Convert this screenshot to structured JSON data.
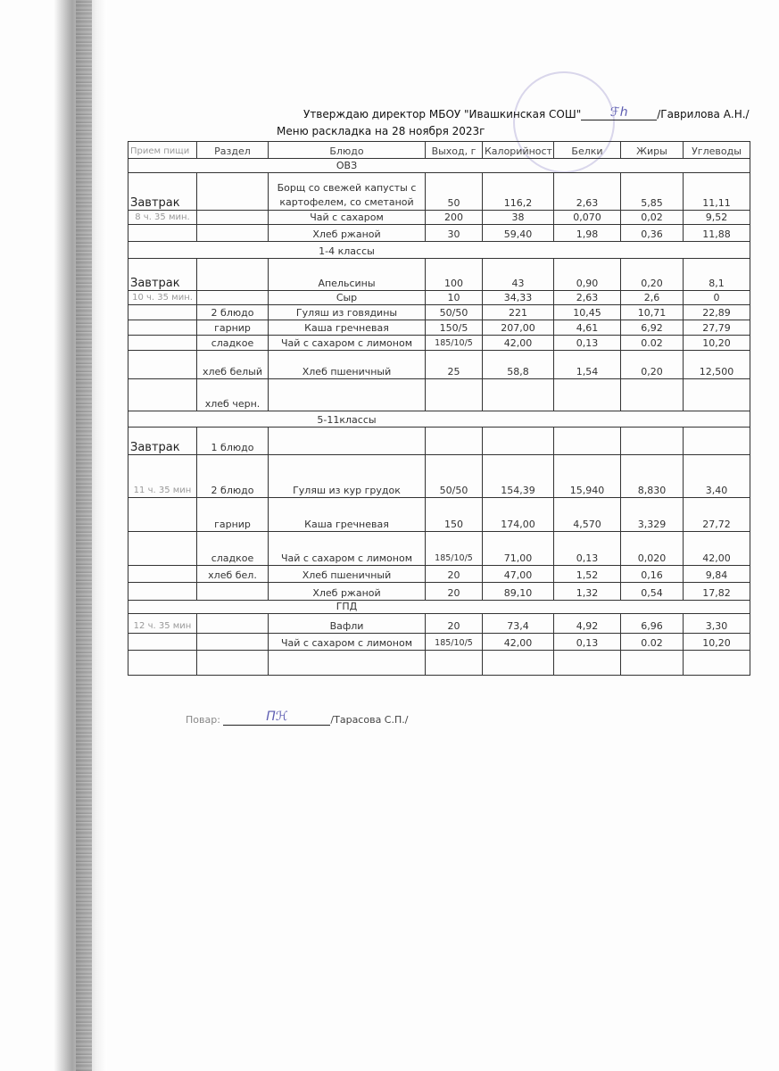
{
  "approval": {
    "text": "Утверждаю директор МБОУ \"Ивашкинская СОШ\"",
    "name": "/Гаврилова А.Н./"
  },
  "title": "Меню раскладка на 28 ноября 2023г",
  "columns": [
    "Прием пищи",
    "Раздел",
    "Блюдо",
    "Выход, г",
    "Калорийность",
    "Белки",
    "Жиры",
    "Углеводы"
  ],
  "rows": [
    {
      "heading": "ОВЗ"
    },
    {
      "cells": [
        "Завтрак",
        "",
        "Борщ со свежей капусты с картофелем, со сметаной",
        "50",
        "116,2",
        "2,63",
        "5,85",
        "11,11"
      ]
    },
    {
      "cells": [
        "8 ч. 35 мин.",
        "",
        "Чай с сахаром",
        "200",
        "38",
        "0,070",
        "0,02",
        "9,52"
      ]
    },
    {
      "cells": [
        "",
        "",
        "Хлеб ржаной",
        "30",
        "59,40",
        "1,98",
        "0,36",
        "11,88"
      ]
    },
    {
      "heading": "1-4 классы"
    },
    {
      "cells": [
        "Завтрак",
        "",
        "Апельсины",
        "100",
        "43",
        "0,90",
        "0,20",
        "8,1"
      ]
    },
    {
      "cells": [
        "10 ч. 35 мин.",
        "",
        "Сыр",
        "10",
        "34,33",
        "2,63",
        "2,6",
        "0"
      ]
    },
    {
      "cells": [
        "",
        "2 блюдо",
        "Гуляш из говядины",
        "50/50",
        "221",
        "10,45",
        "10,71",
        "22,89"
      ]
    },
    {
      "cells": [
        "",
        "гарнир",
        "Каша гречневая",
        "150/5",
        "207,00",
        "4,61",
        "6,92",
        "27,79"
      ]
    },
    {
      "cells": [
        "",
        "сладкое",
        "Чай с сахаром с лимоном",
        "185/10/5",
        "42,00",
        "0,13",
        "0.02",
        "10,20"
      ]
    },
    {
      "cells": [
        "",
        "хлеб белый",
        "Хлеб пшеничный",
        "25",
        "58,8",
        "1,54",
        "0,20",
        "12,500"
      ]
    },
    {
      "cells": [
        "",
        "хлеб черн.",
        "",
        "",
        "",
        "",
        "",
        ""
      ]
    },
    {
      "heading": "5-11классы"
    },
    {
      "cells": [
        "Завтрак",
        "1 блюдо",
        "",
        "",
        "",
        "",
        "",
        ""
      ]
    },
    {
      "cells": [
        "11 ч. 35 мин",
        "2 блюдо",
        "Гуляш из кур грудок",
        "50/50",
        "154,39",
        "15,940",
        "8,830",
        "3,40"
      ]
    },
    {
      "cells": [
        "",
        "гарнир",
        "Каша гречневая",
        "150",
        "174,00",
        "4,570",
        "3,329",
        "27,72"
      ]
    },
    {
      "cells": [
        "",
        "сладкое",
        "Чай с сахаром с лимоном",
        "185/10/5",
        "71,00",
        "0,13",
        "0,020",
        "42,00"
      ]
    },
    {
      "cells": [
        "",
        "хлеб бел.",
        "Хлеб пшеничный",
        "20",
        "47,00",
        "1,52",
        "0,16",
        "9,84"
      ]
    },
    {
      "cells": [
        "",
        "",
        "Хлеб ржаной",
        "20",
        "89,10",
        "1,32",
        "0,54",
        "17,82"
      ]
    },
    {
      "heading": "ГПД"
    },
    {
      "cells": [
        "12 ч. 35 мин",
        "",
        "Вафли",
        "20",
        "73,4",
        "4,92",
        "6,96",
        "3,30"
      ]
    },
    {
      "cells": [
        "",
        "",
        "Чай с сахаром с лимоном",
        "185/10/5",
        "42,00",
        "0,13",
        "0.02",
        "10,20"
      ]
    },
    {
      "cells": [
        "",
        "",
        "",
        "",
        "",
        "",
        "",
        ""
      ]
    }
  ],
  "cook": {
    "label": "Повар:",
    "name": "/Тарасова С.П./"
  }
}
